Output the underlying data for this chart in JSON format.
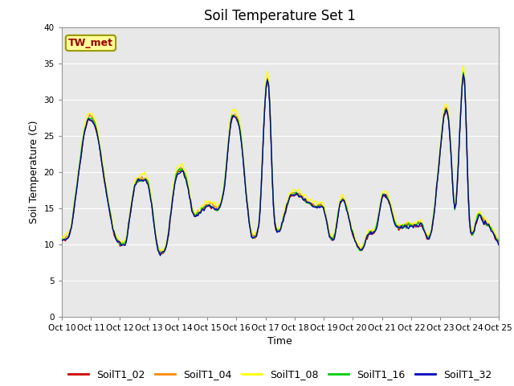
{
  "title": "Soil Temperature Set 1",
  "xlabel": "Time",
  "ylabel": "Soil Temperature (C)",
  "ylim": [
    0,
    40
  ],
  "yticks": [
    0,
    5,
    10,
    15,
    20,
    25,
    30,
    35,
    40
  ],
  "bg_color": "#e8e8e8",
  "series": [
    "SoilT1_02",
    "SoilT1_04",
    "SoilT1_08",
    "SoilT1_16",
    "SoilT1_32"
  ],
  "colors": [
    "#cc0000",
    "#ff8800",
    "#ffff00",
    "#00cc00",
    "#0000bb"
  ],
  "annotation_text": "TW_met",
  "annotation_bg": "#ffff99",
  "annotation_border": "#999900",
  "annotation_text_color": "#990000",
  "x_tick_labels": [
    "Oct 10",
    "Oct 11",
    "Oct 12",
    "Oct 13",
    "Oct 14",
    "Oct 15",
    "Oct 16",
    "Oct 17",
    "Oct 18",
    "Oct 19",
    "Oct 20",
    "Oct 21",
    "Oct 22",
    "Oct 23",
    "Oct 24",
    "Oct 25"
  ],
  "legend_fontsize": 9,
  "title_fontsize": 12,
  "figsize": [
    6.4,
    4.8
  ],
  "dpi": 100
}
